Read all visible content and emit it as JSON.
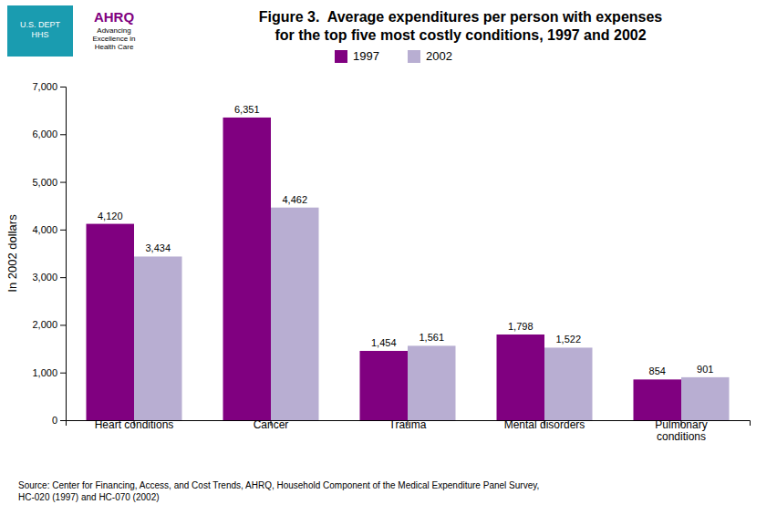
{
  "chart_data": {
    "type": "bar",
    "title": "Figure 3.  Average expenditures per person with expenses\nfor the top five most costly conditions, 1997 and 2002",
    "y_label": "In 2002 dollars",
    "categories": [
      "Heart conditions",
      "Cancer",
      "Trauma",
      "Mental disorders",
      "Pulmonary\nconditions"
    ],
    "series": [
      {
        "name": "1997",
        "color": "#800080",
        "values": [
          4120,
          6351,
          1454,
          1798,
          854
        ],
        "value_labels": [
          "4,120",
          "6,351",
          "1,454",
          "1,798",
          "854"
        ]
      },
      {
        "name": "2002",
        "color": "#b8aed2",
        "values": [
          3434,
          4462,
          1561,
          1522,
          901
        ],
        "value_labels": [
          "3,434",
          "4,462",
          "1,561",
          "1,522",
          "901"
        ]
      }
    ],
    "ylim": [
      0,
      7000
    ],
    "yticks": [
      0,
      {
        "value": 1000,
        "label": "1,000"
      },
      {
        "value": 2000,
        "label": "2,000"
      },
      {
        "value": 3000,
        "label": "3,000"
      },
      {
        "value": 4000,
        "label": "4,000"
      },
      {
        "value": 5000,
        "label": "5,000"
      },
      {
        "value": 6000,
        "label": "6,000"
      },
      {
        "value": 7000,
        "label": "7,000"
      }
    ],
    "grid": false,
    "legend": "top",
    "data_labels": true,
    "annotations": [
      {
        "text": "Source: Center for Financing, Access, and Cost Trends, AHRQ, Household Component of the Medical Expenditure Panel Survey,\nHC-020 (1997) and HC-070 (2002)"
      },
      {
        "text": "U.S. DEPT\nHHS"
      },
      {
        "text": "AHRQ"
      },
      {
        "text": "Advancing\nExcellence in\nHealth Care"
      }
    ]
  }
}
